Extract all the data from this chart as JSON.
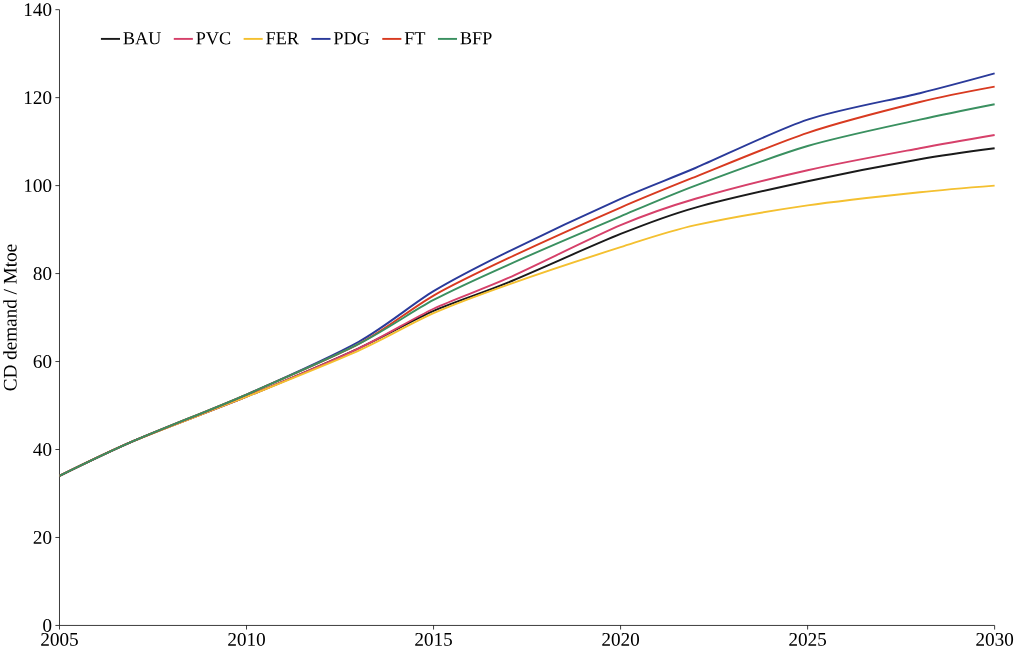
{
  "chart_data": {
    "type": "line",
    "ylabel": "CD demand / Mtoe",
    "x": [
      2005,
      2007,
      2010,
      2013,
      2015,
      2017,
      2020,
      2022,
      2025,
      2028,
      2030
    ],
    "series": [
      {
        "name": "BAU",
        "color": "#1a1a1a",
        "values": [
          34,
          42,
          52,
          63,
          71.5,
          78,
          89,
          95,
          101,
          106,
          108.5
        ]
      },
      {
        "name": "PVC",
        "color": "#d6406a",
        "values": [
          34,
          42,
          52,
          63,
          72,
          79,
          91,
          97,
          103.5,
          108.5,
          111.5
        ]
      },
      {
        "name": "FER",
        "color": "#f4c030",
        "values": [
          34,
          42,
          52,
          62.5,
          71,
          77.5,
          86,
          91,
          95.5,
          98.5,
          100
        ]
      },
      {
        "name": "PDG",
        "color": "#2a3a9a",
        "values": [
          34,
          42,
          52.5,
          64.5,
          76,
          85,
          97,
          104,
          115,
          121,
          125.5
        ]
      },
      {
        "name": "FT",
        "color": "#d83a20",
        "values": [
          34,
          42,
          52.5,
          64,
          75,
          83.5,
          95,
          102,
          112,
          119,
          122.5
        ]
      },
      {
        "name": "BFP",
        "color": "#3a9060",
        "values": [
          34,
          42,
          52.5,
          64,
          74,
          82,
          93,
          100,
          109,
          115,
          118.5
        ]
      }
    ],
    "xlim": [
      2005,
      2030
    ],
    "xticks": [
      2005,
      2010,
      2015,
      2020,
      2025,
      2030
    ],
    "ylim": [
      0,
      140
    ],
    "yticks": [
      0,
      20,
      40,
      60,
      80,
      100,
      120,
      140
    ],
    "grid": false,
    "legend": "top left",
    "marker": "none",
    "line_style": "solid"
  }
}
